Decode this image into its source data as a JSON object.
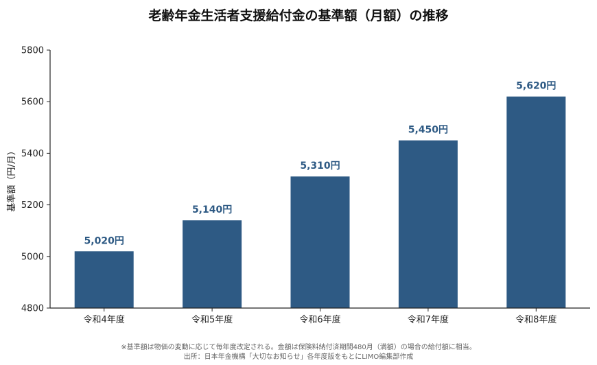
{
  "chart_data": {
    "type": "bar",
    "title": "老齢年金生活者支援給付金の基準額（月額）の推移",
    "categories": [
      "令和4年度",
      "令和5年度",
      "令和6年度",
      "令和7年度",
      "令和8年度"
    ],
    "series": [
      {
        "values": [
          5020,
          5140,
          5310,
          5450,
          5620
        ]
      }
    ],
    "data_labels": [
      "5,020円",
      "5,140円",
      "5,310円",
      "5,450円",
      "5,620円"
    ],
    "xlabel": "",
    "ylabel": "基準額（円/月）",
    "ylim": [
      4800,
      5800
    ],
    "yticks": [
      4800,
      5000,
      5200,
      5400,
      5600,
      5800
    ],
    "grid": false,
    "legend": "none"
  },
  "colors": {
    "bar": "#2e5a84",
    "data_label": "#2e5a84",
    "axis": "#222222"
  },
  "footnotes": {
    "line1": "※基準額は物価の変動に応じて毎年度改定される。金額は保険料納付済期間480月（満額）の場合の給付額に相当。",
    "line2": "出所：日本年金機構「大切なお知らせ」各年度版をもとにLIMO編集部作成"
  }
}
